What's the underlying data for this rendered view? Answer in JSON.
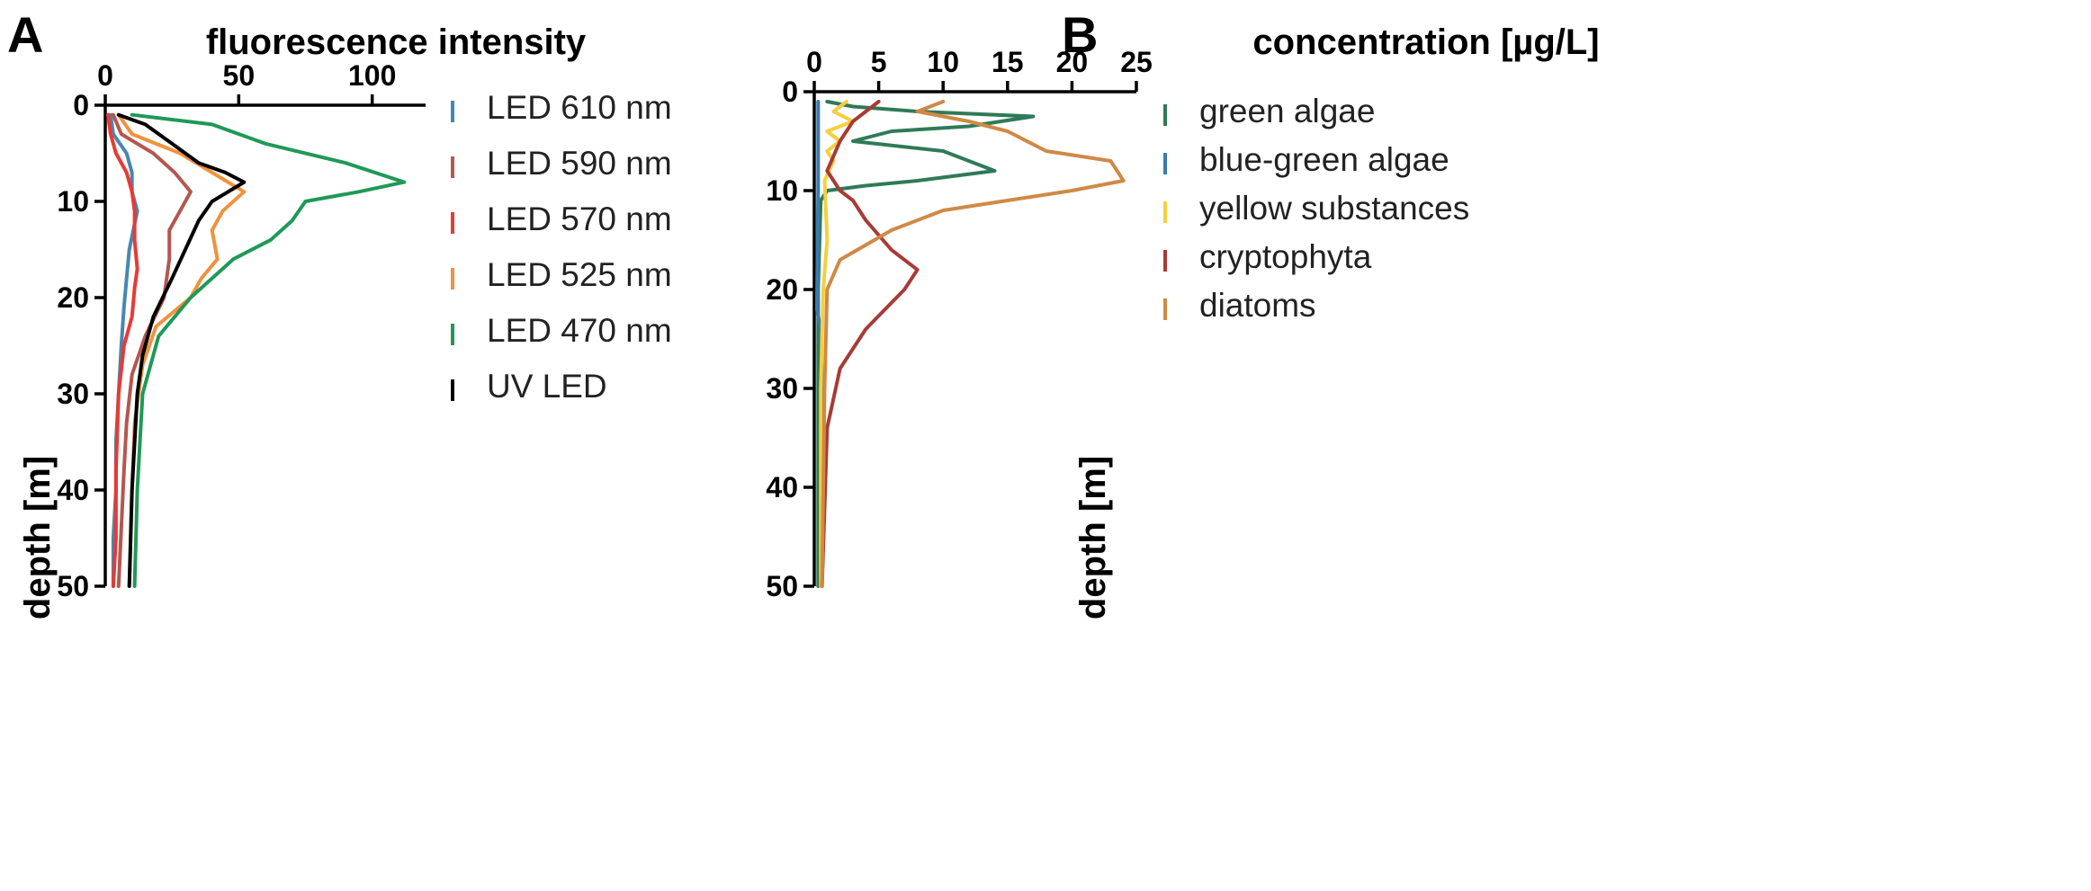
{
  "chart_data": [
    {
      "panel": "A",
      "type": "line",
      "title": "fluorescence intensity",
      "xlabel": "fluorescence intensity",
      "ylabel": "depth [m]",
      "xlim": [
        0,
        120
      ],
      "ylim": [
        0,
        50
      ],
      "xticks": [
        0,
        50,
        100
      ],
      "yticks": [
        0,
        10,
        20,
        30,
        40,
        50
      ],
      "y_inverted": true,
      "legend_position": "right",
      "series": [
        {
          "name": "LED 610 nm",
          "color": "#4a86b0",
          "x": [
            2,
            3,
            8,
            10,
            10,
            12,
            9,
            8,
            7,
            6,
            5,
            4,
            4,
            3,
            3
          ],
          "y": [
            1,
            3,
            5,
            7,
            9,
            11,
            15,
            18,
            21,
            25,
            30,
            35,
            40,
            45,
            50
          ]
        },
        {
          "name": "LED 590 nm",
          "color": "#b5574f",
          "x": [
            3,
            6,
            18,
            26,
            32,
            28,
            24,
            24,
            22,
            15,
            10,
            8,
            7,
            6,
            5
          ],
          "y": [
            1,
            3,
            5,
            7,
            9,
            11,
            13,
            16,
            20,
            24,
            28,
            33,
            38,
            44,
            50
          ]
        },
        {
          "name": "LED 570 nm",
          "color": "#e83a35",
          "x": [
            1,
            2,
            4,
            8,
            10,
            11,
            11,
            12,
            11,
            10,
            7,
            5,
            4,
            4,
            3
          ],
          "y": [
            1,
            3,
            5,
            7,
            9,
            11,
            14,
            17,
            19,
            22,
            25,
            30,
            38,
            45,
            50
          ]
        },
        {
          "name": "LED 525 nm",
          "color": "#f2913d",
          "x": [
            5,
            10,
            28,
            40,
            52,
            44,
            40,
            42,
            36,
            32,
            19,
            14,
            11,
            10,
            9
          ],
          "y": [
            1,
            3,
            5,
            7,
            9,
            11,
            13,
            16,
            18,
            20,
            23,
            27,
            33,
            40,
            50
          ]
        },
        {
          "name": "LED 470 nm",
          "color": "#1f9957",
          "x": [
            10,
            40,
            60,
            90,
            112,
            95,
            75,
            70,
            62,
            48,
            32,
            20,
            14,
            12,
            11
          ],
          "y": [
            1,
            2,
            4,
            6,
            8,
            9,
            10,
            12,
            14,
            16,
            20,
            24,
            30,
            40,
            50
          ]
        },
        {
          "name": "UV LED",
          "color": "#000000",
          "x": [
            5,
            15,
            25,
            35,
            45,
            52,
            40,
            35,
            30,
            25,
            18,
            14,
            12,
            10,
            9
          ],
          "y": [
            1,
            2,
            4,
            6,
            7,
            8,
            10,
            12,
            15,
            18,
            22,
            26,
            30,
            40,
            50
          ]
        }
      ]
    },
    {
      "panel": "B",
      "type": "line",
      "title": "concentration [µg/L]",
      "xlabel": "concentration [µg/L]",
      "ylabel": "depth [m]",
      "xlim": [
        0,
        25
      ],
      "ylim": [
        0,
        50
      ],
      "xticks": [
        0,
        5,
        10,
        15,
        20,
        25
      ],
      "yticks": [
        0,
        10,
        20,
        30,
        40,
        50
      ],
      "y_inverted": true,
      "legend_position": "right",
      "series": [
        {
          "name": "green algae",
          "color": "#2f7a58",
          "x": [
            1,
            3,
            8,
            17,
            12,
            6,
            3,
            10,
            14,
            8,
            4,
            1,
            0.5,
            0.3,
            0.3,
            0.3
          ],
          "y": [
            1,
            1.5,
            2,
            2.5,
            3.5,
            4,
            5,
            6,
            8,
            9,
            9.5,
            10,
            11,
            20,
            35,
            50
          ]
        },
        {
          "name": "blue-green algae",
          "color": "#3b7ab0",
          "x": [
            0.3,
            0.3,
            0.2,
            0.5,
            0.6,
            0.7,
            0.7,
            0.6
          ],
          "y": [
            1,
            10,
            22,
            24,
            30,
            37,
            44,
            50
          ]
        },
        {
          "name": "yellow substances",
          "color": "#f4d03f",
          "x": [
            2.5,
            1.5,
            3,
            1,
            2,
            1,
            1.5,
            0.8,
            1,
            0.7,
            0.5,
            0.5
          ],
          "y": [
            1,
            2,
            3,
            4,
            5,
            6,
            7,
            9,
            15,
            20,
            30,
            50
          ]
        },
        {
          "name": "cryptophyta",
          "color": "#a83b35",
          "x": [
            5,
            4,
            3,
            2,
            1,
            2,
            3,
            4,
            6,
            8,
            7,
            4,
            2,
            1,
            0.8,
            0.6
          ],
          "y": [
            1,
            2,
            3,
            5,
            8,
            10,
            11,
            13,
            16,
            18,
            20,
            24,
            28,
            34,
            42,
            50
          ]
        },
        {
          "name": "diatoms",
          "color": "#d08945",
          "x": [
            10,
            8,
            12,
            15,
            18,
            23,
            24,
            20,
            15,
            10,
            6,
            2,
            1,
            0.8,
            0.7,
            0.6
          ],
          "y": [
            1,
            2,
            3,
            4,
            6,
            7,
            9,
            10,
            11,
            12,
            14,
            17,
            20,
            30,
            40,
            50
          ]
        }
      ]
    }
  ]
}
